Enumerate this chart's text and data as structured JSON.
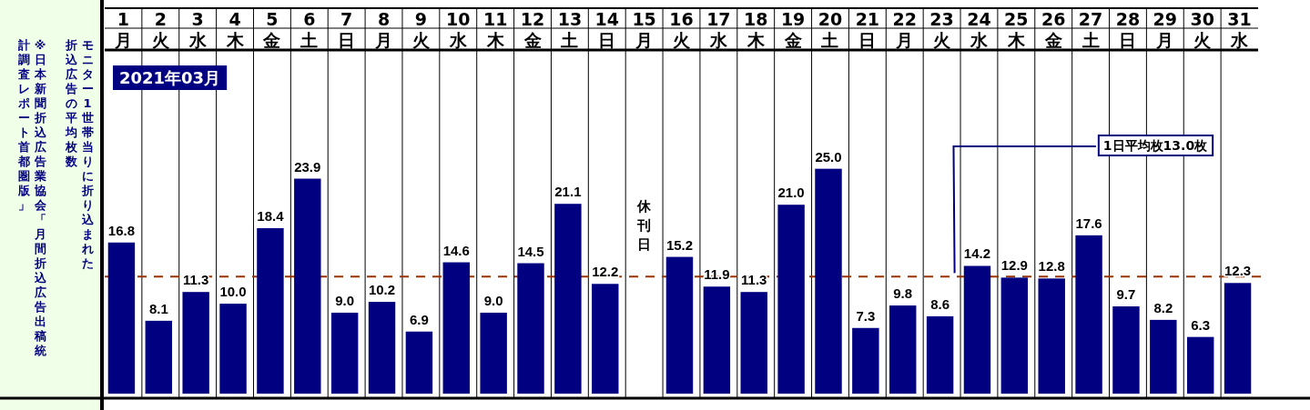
{
  "chart_data": {
    "type": "bar",
    "title": "2021年03月",
    "categories": [
      "1\n月",
      "2\n火",
      "3\n水",
      "4\n木",
      "5\n金",
      "6\n土",
      "7\n日",
      "8\n月",
      "9\n火",
      "10\n水",
      "11\n木",
      "12\n金",
      "13\n土",
      "14\n日",
      "15\n月",
      "16\n火",
      "17\n水",
      "18\n木",
      "19\n金",
      "20\n土",
      "21\n日",
      "22\n月",
      "23\n火",
      "24\n水",
      "25\n木",
      "26\n金",
      "27\n土",
      "28\n日",
      "29\n月",
      "30\n火",
      "31\n水"
    ],
    "values": [
      16.8,
      8.1,
      11.3,
      10.0,
      18.4,
      23.9,
      9.0,
      10.2,
      6.9,
      14.6,
      9.0,
      14.5,
      21.1,
      12.2,
      null,
      15.2,
      11.9,
      11.3,
      21.0,
      25.0,
      7.3,
      9.8,
      8.6,
      14.2,
      12.9,
      12.8,
      17.6,
      9.7,
      8.2,
      6.3,
      12.3
    ],
    "value_labels": [
      "16.8",
      "8.1",
      "11.3",
      "10.0",
      "18.4",
      "23.9",
      "9.0",
      "10.2",
      "6.9",
      "14.6",
      "9.0",
      "14.5",
      "21.1",
      "12.2",
      null,
      "15.2",
      "11.9",
      "11.3",
      "21.0",
      "25.0",
      "7.3",
      "9.8",
      "8.6",
      "14.2",
      "12.9",
      "12.8",
      "17.6",
      "9.7",
      "8.2",
      "6.3",
      "12.3"
    ],
    "color": "#000080",
    "ref_lines": [
      {
        "axis": "y",
        "value": 13.0,
        "label": "1日平均枚13.0枚",
        "color": "#993300",
        "line_style": "dashed"
      }
    ],
    "annotations": [
      "休刊日",
      "モニター1世帯当りに折り込まれた折込広告の平均枚数",
      "※日本新聞折込広告業協会「月間折込広告出稿統計調査レポート首都圏版」"
    ],
    "grid": "x"
  }
}
